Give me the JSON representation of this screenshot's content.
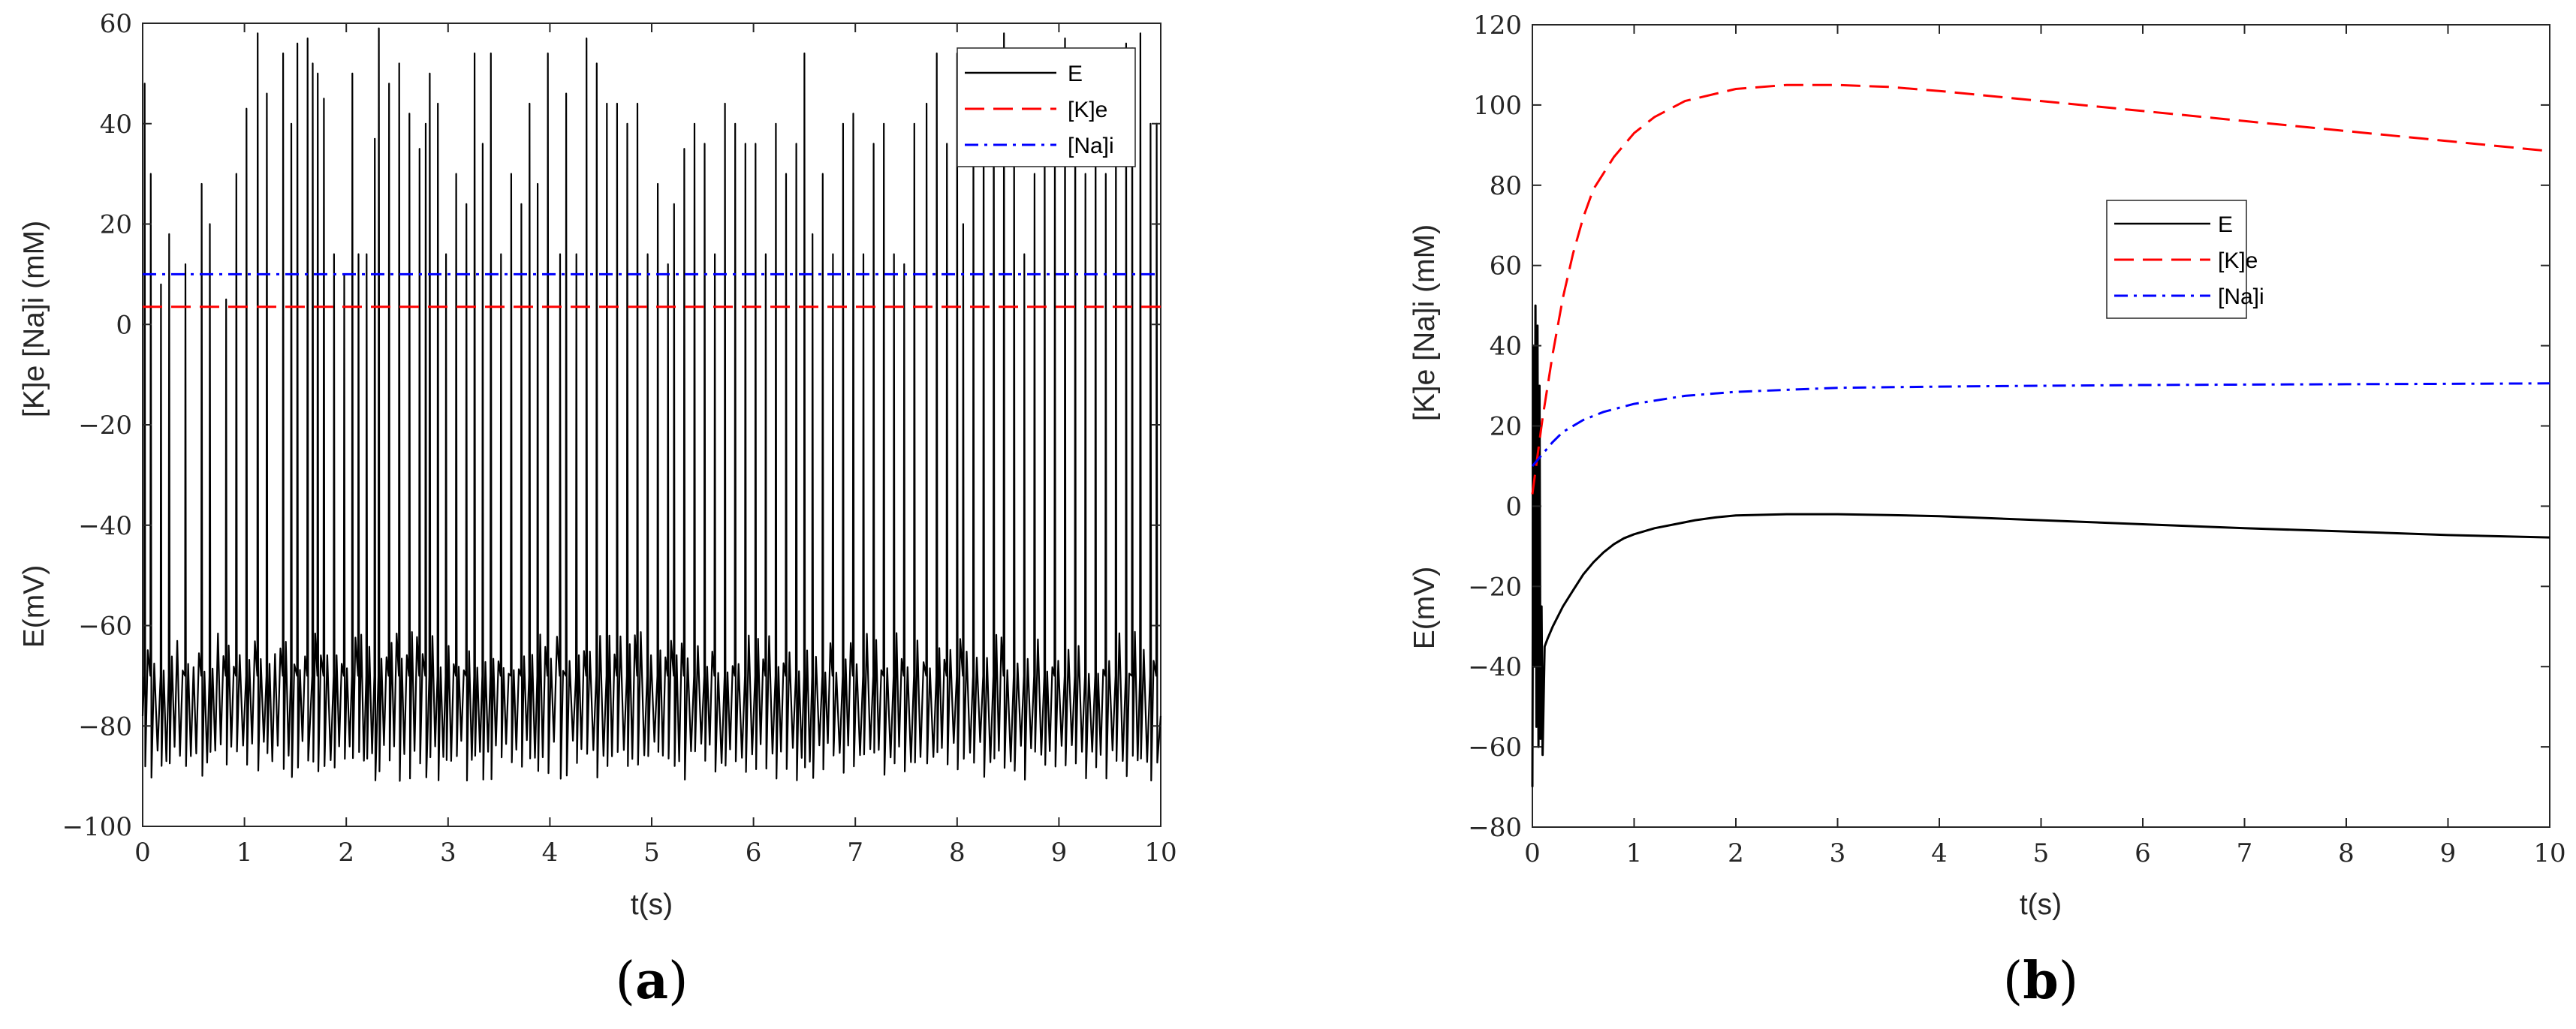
{
  "chart_data": [
    {
      "type": "line",
      "panel_label": {
        "open": "(",
        "letter": "a",
        "close": ")"
      },
      "xlabel": "t(s)",
      "ylabel_top": "[K]e  [Na]i (mM)",
      "ylabel_bottom": "E(mV)",
      "xlim": [
        0,
        10
      ],
      "ylim": [
        -100,
        60
      ],
      "xticks": [
        0,
        1,
        2,
        3,
        4,
        5,
        6,
        7,
        8,
        9,
        10
      ],
      "yticks": [
        -100,
        -80,
        -60,
        -40,
        -20,
        0,
        20,
        40,
        60
      ],
      "ytick_labels": [
        "−100",
        "−80",
        "−60",
        "−40",
        "−20",
        "0",
        "20",
        "40",
        "60"
      ],
      "legend_position": "top-right",
      "series": [
        {
          "name": "E",
          "style": "solid",
          "color": "#000000",
          "kind": "spiking",
          "rest": -78,
          "spike_times": [
            0.02,
            0.08,
            0.18,
            0.26,
            0.42,
            0.58,
            0.66,
            0.82,
            0.92,
            1.02,
            1.13,
            1.22,
            1.38,
            1.46,
            1.52,
            1.62,
            1.67,
            1.72,
            1.78,
            1.88,
            1.98,
            2.06,
            2.12,
            2.2,
            2.28,
            2.32,
            2.42,
            2.52,
            2.62,
            2.72,
            2.78,
            2.82,
            2.9,
            2.98,
            3.08,
            3.18,
            3.26,
            3.34,
            3.42,
            3.52,
            3.62,
            3.72,
            3.8,
            3.88,
            3.98,
            4.1,
            4.16,
            4.26,
            4.36,
            4.46,
            4.56,
            4.66,
            4.76,
            4.86,
            4.96,
            5.06,
            5.16,
            5.22,
            5.32,
            5.42,
            5.52,
            5.62,
            5.72,
            5.82,
            5.92,
            6.02,
            6.12,
            6.22,
            6.32,
            6.42,
            6.5,
            6.58,
            6.68,
            6.78,
            6.88,
            6.98,
            7.08,
            7.18,
            7.28,
            7.38,
            7.48,
            7.58,
            7.7,
            7.8,
            7.9,
            8.0,
            8.06,
            8.16,
            8.26,
            8.36,
            8.46,
            8.56,
            8.66,
            8.76,
            8.86,
            8.96,
            9.06,
            9.16,
            9.26,
            9.36,
            9.46,
            9.56,
            9.66,
            9.72,
            9.8,
            9.9,
            9.96
          ],
          "spike_peaks": [
            48,
            30,
            8,
            18,
            12,
            28,
            20,
            5,
            30,
            43,
            58,
            46,
            54,
            40,
            56,
            57,
            52,
            50,
            45,
            14,
            10,
            50,
            14,
            14,
            37,
            59,
            48,
            52,
            42,
            35,
            40,
            50,
            44,
            14,
            30,
            24,
            54,
            36,
            54,
            14,
            30,
            24,
            44,
            28,
            54,
            14,
            46,
            14,
            57,
            52,
            44,
            44,
            40,
            44,
            14,
            28,
            12,
            24,
            35,
            40,
            36,
            14,
            44,
            40,
            36,
            36,
            14,
            40,
            30,
            36,
            54,
            18,
            30,
            14,
            40,
            42,
            14,
            36,
            40,
            14,
            12,
            40,
            44,
            54,
            36,
            54,
            20,
            40,
            46,
            53,
            58,
            40,
            14,
            30,
            40,
            40,
            57,
            53,
            30,
            44,
            30,
            40,
            56,
            55,
            58,
            40,
            40
          ],
          "min": -91
        },
        {
          "name": "[K]e",
          "style": "dashed",
          "color": "#ff0000",
          "kind": "constant",
          "value": 3.5
        },
        {
          "name": "[Na]i",
          "style": "dashdot",
          "color": "#0000ff",
          "kind": "constant",
          "value": 10
        }
      ]
    },
    {
      "type": "line",
      "panel_label": {
        "open": "(",
        "letter": "b",
        "close": ")"
      },
      "xlabel": "t(s)",
      "ylabel_top": "[K]e  [Na]i (mM)",
      "ylabel_bottom": "E(mV)",
      "xlim": [
        0,
        10
      ],
      "ylim": [
        -80,
        120
      ],
      "xticks": [
        0,
        1,
        2,
        3,
        4,
        5,
        6,
        7,
        8,
        9,
        10
      ],
      "yticks": [
        -80,
        -60,
        -40,
        -20,
        0,
        20,
        40,
        60,
        80,
        100,
        120
      ],
      "ytick_labels": [
        "−80",
        "−60",
        "−40",
        "−20",
        "0",
        "20",
        "40",
        "60",
        "80",
        "100",
        "120"
      ],
      "legend_position": "center-right",
      "series": [
        {
          "name": "E",
          "style": "solid",
          "color": "#000000",
          "kind": "points",
          "x": [
            0,
            0.01,
            0.02,
            0.03,
            0.04,
            0.05,
            0.06,
            0.07,
            0.08,
            0.09,
            0.1,
            0.12,
            0.15,
            0.2,
            0.3,
            0.4,
            0.5,
            0.6,
            0.7,
            0.8,
            0.9,
            1.0,
            1.2,
            1.4,
            1.6,
            1.8,
            2.0,
            2.5,
            3.0,
            3.5,
            4.0,
            5.0,
            6.0,
            7.0,
            8.0,
            9.0,
            10.0
          ],
          "y": [
            -70,
            40,
            -40,
            50,
            -55,
            45,
            -60,
            30,
            -58,
            -25,
            -62,
            -35,
            -33,
            -30,
            -25,
            -21,
            -17,
            -14,
            -11.5,
            -9.5,
            -8,
            -7,
            -5.5,
            -4.5,
            -3.5,
            -2.8,
            -2.3,
            -2,
            -2,
            -2.2,
            -2.5,
            -3.5,
            -4.5,
            -5.5,
            -6.3,
            -7.2,
            -7.8
          ]
        },
        {
          "name": "[K]e",
          "style": "dashed",
          "color": "#ff0000",
          "kind": "points",
          "x": [
            0,
            0.1,
            0.2,
            0.3,
            0.4,
            0.5,
            0.6,
            0.8,
            1.0,
            1.2,
            1.5,
            2.0,
            2.5,
            3.0,
            3.5,
            4.0,
            5.0,
            6.0,
            7.0,
            8.0,
            9.0,
            10.0
          ],
          "y": [
            3,
            22,
            38,
            52,
            63,
            72,
            79,
            87,
            93,
            97,
            101,
            104,
            105,
            105,
            104.5,
            103.5,
            101,
            98.5,
            96,
            93.5,
            91,
            88.5
          ]
        },
        {
          "name": "[Na]i",
          "style": "dashdot",
          "color": "#0000ff",
          "kind": "points",
          "x": [
            0,
            0.1,
            0.2,
            0.3,
            0.5,
            0.7,
            1.0,
            1.5,
            2.0,
            3.0,
            4.0,
            5.0,
            6.0,
            7.0,
            8.0,
            9.0,
            10.0
          ],
          "y": [
            10,
            13,
            16,
            18.5,
            21.5,
            23.5,
            25.5,
            27.5,
            28.5,
            29.5,
            29.8,
            30,
            30.2,
            30.3,
            30.4,
            30.5,
            30.6
          ]
        }
      ]
    }
  ]
}
